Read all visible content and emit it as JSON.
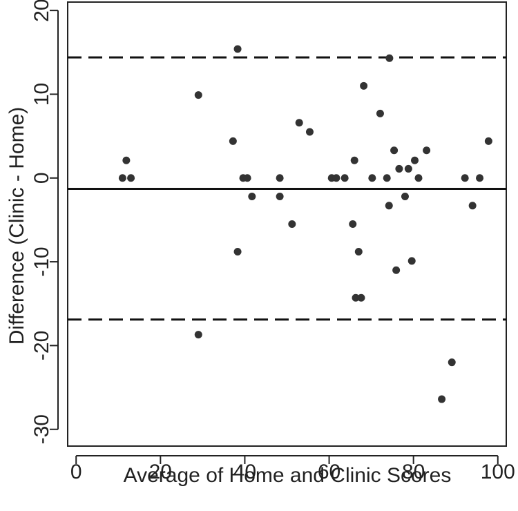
{
  "chart_data": {
    "type": "scatter",
    "title": "",
    "xlabel": "Average of Home and Clinic Scores",
    "ylabel": "Difference (Clinic - Home)",
    "xlim": [
      -2,
      102
    ],
    "ylim": [
      -32,
      21
    ],
    "x_ticks": [
      0,
      20,
      40,
      60,
      80,
      100
    ],
    "y_ticks": [
      -30,
      -20,
      -10,
      0,
      10,
      20
    ],
    "grid": false,
    "legend": "none",
    "reference_lines": [
      {
        "name": "mean",
        "y": -1.3,
        "style": "solid"
      },
      {
        "name": "upper-limit",
        "y": 14.4,
        "style": "dashed"
      },
      {
        "name": "lower-limit",
        "y": -16.9,
        "style": "dashed"
      }
    ],
    "points": [
      {
        "x": 11,
        "y": 0
      },
      {
        "x": 11.9,
        "y": 2.1
      },
      {
        "x": 13,
        "y": 0
      },
      {
        "x": 29,
        "y": 9.9
      },
      {
        "x": 29,
        "y": -18.7
      },
      {
        "x": 37.2,
        "y": 4.4
      },
      {
        "x": 38.3,
        "y": 15.4
      },
      {
        "x": 38.3,
        "y": -8.8
      },
      {
        "x": 39.6,
        "y": 0
      },
      {
        "x": 40.6,
        "y": 0
      },
      {
        "x": 41.7,
        "y": -2.2
      },
      {
        "x": 48.3,
        "y": 0
      },
      {
        "x": 48.3,
        "y": -2.2
      },
      {
        "x": 51.2,
        "y": -5.5
      },
      {
        "x": 52.9,
        "y": 6.6
      },
      {
        "x": 55.4,
        "y": 5.5
      },
      {
        "x": 60.6,
        "y": 0
      },
      {
        "x": 61.7,
        "y": 0
      },
      {
        "x": 63.7,
        "y": 0
      },
      {
        "x": 65.6,
        "y": -5.5
      },
      {
        "x": 66,
        "y": 2.1
      },
      {
        "x": 66.3,
        "y": -14.3
      },
      {
        "x": 67,
        "y": -8.8
      },
      {
        "x": 67.6,
        "y": -14.3
      },
      {
        "x": 68.2,
        "y": 11
      },
      {
        "x": 70.2,
        "y": 0
      },
      {
        "x": 72.1,
        "y": 7.7
      },
      {
        "x": 73.7,
        "y": 0
      },
      {
        "x": 74.2,
        "y": -3.3
      },
      {
        "x": 74.3,
        "y": 14.3
      },
      {
        "x": 75.4,
        "y": 3.3
      },
      {
        "x": 75.9,
        "y": -11
      },
      {
        "x": 76.6,
        "y": 1.1
      },
      {
        "x": 78,
        "y": -2.2
      },
      {
        "x": 78.8,
        "y": 1.1
      },
      {
        "x": 79.6,
        "y": -9.9
      },
      {
        "x": 80.3,
        "y": 2.1
      },
      {
        "x": 81.2,
        "y": 0
      },
      {
        "x": 83.1,
        "y": 3.3
      },
      {
        "x": 86.7,
        "y": -26.4
      },
      {
        "x": 89.1,
        "y": -22
      },
      {
        "x": 92.2,
        "y": 0
      },
      {
        "x": 94,
        "y": -3.3
      },
      {
        "x": 95.7,
        "y": 0
      },
      {
        "x": 97.8,
        "y": 4.4
      }
    ]
  }
}
